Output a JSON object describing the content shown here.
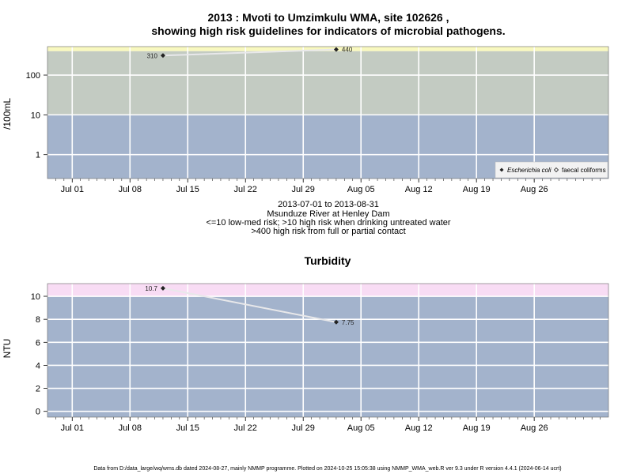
{
  "chart_data": [
    {
      "type": "line",
      "title": "2013 : Mvoti to Umzimkulu WMA, site 102626 ,",
      "subtitle": "showing high risk guidelines for indicators of microbial pathogens.",
      "ylabel": "/100mL",
      "yscale": "log",
      "ylim": [
        0.25,
        520
      ],
      "yticks": [
        1,
        10,
        100
      ],
      "ytick_labels": [
        "1",
        "10",
        "100"
      ],
      "xlim": [
        "2013-06-28",
        "2013-09-04"
      ],
      "xticks": [
        "2013-07-01",
        "2013-07-08",
        "2013-07-15",
        "2013-07-22",
        "2013-07-29",
        "2013-08-05",
        "2013-08-12",
        "2013-08-19",
        "2013-08-26"
      ],
      "xtick_labels": [
        "Jul 01",
        "Jul 08",
        "Jul 15",
        "Jul 22",
        "Jul 29",
        "Aug 05",
        "Aug 12",
        "Aug 19",
        "Aug 26"
      ],
      "bands": [
        {
          "from": 0.25,
          "to": 10,
          "color": "#a3b3cc"
        },
        {
          "from": 10,
          "to": 400,
          "color": "#c3cbc2"
        },
        {
          "from": 400,
          "to": 520,
          "color": "#f8f8bf"
        }
      ],
      "series": [
        {
          "name": "Escherichia coli",
          "marker": "diamond-filled",
          "x": [
            "2013-07-12",
            "2013-08-02"
          ],
          "values": [
            310,
            440
          ],
          "labels": [
            "310",
            "440"
          ]
        }
      ],
      "legend_items": [
        "Escherichia coli",
        "faecal coliforms"
      ],
      "legend_position": "bottom-right",
      "caption_lines": [
        "2013-07-01 to 2013-08-31",
        "Msunduze River at Henley Dam",
        "<=10 low-med risk; >10 high risk when drinking untreated water",
        ">400 high risk from full or partial contact"
      ],
      "grid": true
    },
    {
      "type": "line",
      "title": "Turbidity",
      "ylabel": "NTU",
      "ylim": [
        -0.5,
        11.1
      ],
      "yticks": [
        0,
        2,
        4,
        6,
        8,
        10
      ],
      "ytick_labels": [
        "0",
        "2",
        "4",
        "6",
        "8",
        "10"
      ],
      "xlim": [
        "2013-06-28",
        "2013-09-04"
      ],
      "xticks": [
        "2013-07-01",
        "2013-07-08",
        "2013-07-15",
        "2013-07-22",
        "2013-07-29",
        "2013-08-05",
        "2013-08-12",
        "2013-08-19",
        "2013-08-26"
      ],
      "xtick_labels": [
        "Jul 01",
        "Jul 08",
        "Jul 15",
        "Jul 22",
        "Jul 29",
        "Aug 05",
        "Aug 12",
        "Aug 19",
        "Aug 26"
      ],
      "bands": [
        {
          "from": -0.5,
          "to": 10,
          "color": "#a3b3cc"
        },
        {
          "from": 10,
          "to": 11.1,
          "color": "#f8dcf4"
        }
      ],
      "series": [
        {
          "name": "",
          "marker": "diamond-filled",
          "x": [
            "2013-07-12",
            "2013-08-02"
          ],
          "values": [
            10.7,
            7.75
          ],
          "labels": [
            "10.7",
            "7.75"
          ]
        }
      ],
      "grid": true
    }
  ],
  "footer": "Data from D:/data_large/wq/wms.db dated 2024-08-27, mainly NMMP programme. Plotted on 2024-10-25 15:05:38 using NMMP_WMA_web.R ver 9.3 under R version 4.4.1 (2024-06-14 ucrt)"
}
